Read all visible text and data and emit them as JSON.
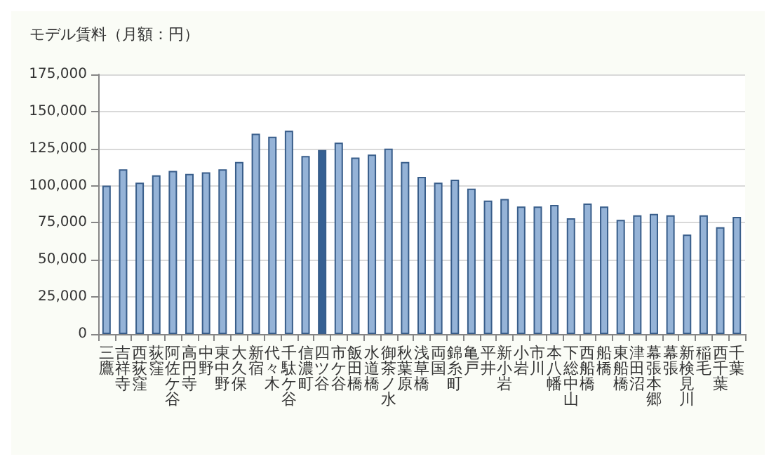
{
  "chart_data": {
    "type": "bar",
    "title": "モデル賃料（月額：円）",
    "categories": [
      "三鷹",
      "吉祥寺",
      "西荻窪",
      "荻窪",
      "阿佐ケ谷",
      "高円寺",
      "中野",
      "東中野",
      "大久保",
      "新宿",
      "代々木",
      "千駄ケ谷",
      "信濃町",
      "四ツ谷",
      "市ケ谷",
      "飯田橋",
      "水道橋",
      "御茶ノ水",
      "秋葉原",
      "浅草橋",
      "両国",
      "錦糸町",
      "亀戸",
      "平井",
      "新小岩",
      "小岩",
      "市川",
      "本八幡",
      "下総中山",
      "西船橋",
      "船橋",
      "東船橋",
      "津田沼",
      "幕張本郷",
      "幕張",
      "新検見川",
      "稲毛",
      "西千葉",
      "千葉"
    ],
    "values": [
      100000,
      111000,
      102000,
      107000,
      110000,
      108000,
      109000,
      111000,
      116000,
      135000,
      133000,
      137000,
      120000,
      124000,
      129000,
      119000,
      121000,
      125000,
      116000,
      106000,
      102000,
      104000,
      98000,
      90000,
      91000,
      86000,
      86000,
      87000,
      78000,
      88000,
      86000,
      77000,
      80000,
      81000,
      80000,
      67000,
      80000,
      72000,
      79000
    ],
    "colors": [
      "#95b3d7",
      "#95b3d7",
      "#95b3d7",
      "#95b3d7",
      "#95b3d7",
      "#95b3d7",
      "#95b3d7",
      "#95b3d7",
      "#95b3d7",
      "#95b3d7",
      "#95b3d7",
      "#95b3d7",
      "#95b3d7",
      "#366092",
      "#95b3d7",
      "#95b3d7",
      "#95b3d7",
      "#95b3d7",
      "#95b3d7",
      "#95b3d7",
      "#95b3d7",
      "#95b3d7",
      "#95b3d7",
      "#95b3d7",
      "#95b3d7",
      "#95b3d7",
      "#95b3d7",
      "#95b3d7",
      "#95b3d7",
      "#95b3d7",
      "#95b3d7",
      "#95b3d7",
      "#95b3d7",
      "#95b3d7",
      "#95b3d7",
      "#95b3d7",
      "#95b3d7",
      "#95b3d7",
      "#95b3d7"
    ],
    "ylim": [
      0,
      175000
    ],
    "yticks": [
      0,
      {
        "value": 25000,
        "label": "25,000"
      },
      {
        "value": 50000,
        "label": "50,000"
      },
      {
        "value": 75000,
        "label": "75,000"
      },
      {
        "value": 100000,
        "label": "100,000"
      },
      {
        "value": 125000,
        "label": "125,000"
      },
      {
        "value": 150000,
        "label": "150,000"
      },
      {
        "value": 175000,
        "label": "175,000"
      }
    ],
    "grid": "y"
  }
}
